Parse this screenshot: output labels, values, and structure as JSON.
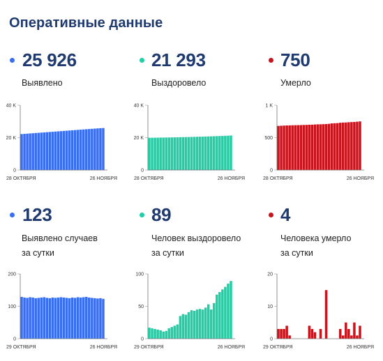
{
  "page_title": "Оперативные данные",
  "colors": {
    "blue": "#3a6ef0",
    "green": "#1fcfa5",
    "red": "#c8141c",
    "title": "#1f3a6e"
  },
  "stats": [
    {
      "value": "25 926",
      "label_lines": [
        "Выявлено"
      ],
      "color": "#3a6ef0"
    },
    {
      "value": "21 293",
      "label_lines": [
        "Выздоровело"
      ],
      "color": "#1fcfa5"
    },
    {
      "value": "750",
      "label_lines": [
        "Умерло"
      ],
      "color": "#c8141c"
    },
    {
      "value": "123",
      "label_lines": [
        "Выявлено случаев",
        "за сутки"
      ],
      "color": "#3a6ef0"
    },
    {
      "value": "89",
      "label_lines": [
        "Человек выздоровело",
        "за сутки"
      ],
      "color": "#1fcfa5"
    },
    {
      "value": "4",
      "label_lines": [
        "Человека умерло",
        "за сутки"
      ],
      "color": "#c8141c"
    }
  ],
  "chart_data": [
    {
      "type": "bar",
      "color": "#3a6ef0",
      "ylim": [
        0,
        40000
      ],
      "yticks": [
        {
          "v": 0,
          "label": "0"
        },
        {
          "v": 20000,
          "label": "20 K"
        },
        {
          "v": 40000,
          "label": "40 K"
        }
      ],
      "xtick_labels": [
        "28 ОКТЯБРЯ",
        "26 НОЯБРЯ"
      ],
      "values": [
        22200,
        22330,
        22460,
        22590,
        22720,
        22850,
        22980,
        23110,
        23240,
        23370,
        23500,
        23630,
        23760,
        23890,
        24020,
        24150,
        24280,
        24410,
        24540,
        24670,
        24800,
        24930,
        25060,
        25190,
        25320,
        25450,
        25580,
        25710,
        25840,
        25926
      ]
    },
    {
      "type": "bar",
      "color": "#1fcfa5",
      "ylim": [
        0,
        40000
      ],
      "yticks": [
        {
          "v": 0,
          "label": "0"
        },
        {
          "v": 20000,
          "label": "20 K"
        },
        {
          "v": 40000,
          "label": "40 K"
        }
      ],
      "xtick_labels": [
        "28 ОКТЯБРЯ",
        "26 НОЯБРЯ"
      ],
      "values": [
        19900,
        19930,
        19960,
        19990,
        20020,
        20050,
        20080,
        20110,
        20150,
        20190,
        20230,
        20270,
        20310,
        20350,
        20390,
        20430,
        20480,
        20530,
        20580,
        20630,
        20690,
        20750,
        20810,
        20870,
        20930,
        21000,
        21060,
        21130,
        21200,
        21293
      ]
    },
    {
      "type": "bar",
      "color": "#c8141c",
      "ylim": [
        0,
        1000
      ],
      "yticks": [
        {
          "v": 0,
          "label": "0"
        },
        {
          "v": 500,
          "label": "500"
        },
        {
          "v": 1000,
          "label": "1 K"
        }
      ],
      "xtick_labels": [
        "28 ОКТЯБРЯ",
        "26 НОЯБРЯ"
      ],
      "values": [
        681,
        684,
        686,
        688,
        689,
        691,
        692,
        693,
        694,
        696,
        697,
        699,
        700,
        703,
        705,
        706,
        708,
        710,
        713,
        720,
        722,
        724,
        730,
        733,
        734,
        738,
        740,
        742,
        746,
        750
      ]
    },
    {
      "type": "bar",
      "color": "#3a6ef0",
      "ylim": [
        0,
        200
      ],
      "yticks": [
        {
          "v": 0,
          "label": "0"
        },
        {
          "v": 100,
          "label": "100"
        },
        {
          "v": 200,
          "label": "200"
        }
      ],
      "xtick_labels": [
        "29 ОКТЯБРЯ",
        "26 НОЯБРЯ"
      ],
      "values": [
        129,
        127,
        126,
        128,
        127,
        125,
        126,
        127,
        128,
        126,
        125,
        127,
        126,
        127,
        128,
        127,
        126,
        125,
        127,
        126,
        128,
        127,
        128,
        129,
        127,
        126,
        125,
        124,
        125,
        123
      ]
    },
    {
      "type": "bar",
      "color": "#1fcfa5",
      "ylim": [
        0,
        100
      ],
      "yticks": [
        {
          "v": 0,
          "label": "0"
        },
        {
          "v": 50,
          "label": "50"
        },
        {
          "v": 100,
          "label": "100"
        }
      ],
      "xtick_labels": [
        "29 ОКТЯБРЯ",
        "26 НОЯБРЯ"
      ],
      "values": [
        17,
        16,
        15,
        14,
        13,
        11,
        12,
        16,
        18,
        20,
        22,
        35,
        38,
        37,
        41,
        44,
        43,
        45,
        46,
        45,
        48,
        53,
        45,
        55,
        68,
        72,
        76,
        80,
        85,
        89
      ]
    },
    {
      "type": "bar",
      "color": "#c8141c",
      "ylim": [
        0,
        20
      ],
      "yticks": [
        {
          "v": 0,
          "label": "0"
        },
        {
          "v": 10,
          "label": "10"
        },
        {
          "v": 20,
          "label": "20"
        }
      ],
      "xtick_labels": [
        "29 ОКТЯБРЯ",
        "26 НОЯБРЯ"
      ],
      "values": [
        3,
        3,
        3,
        4,
        1,
        0,
        0,
        0,
        0,
        0,
        0,
        4,
        3,
        2,
        0,
        3,
        0,
        15,
        0,
        0,
        0,
        0,
        3,
        1,
        5,
        3,
        1,
        5,
        1,
        4
      ]
    }
  ]
}
